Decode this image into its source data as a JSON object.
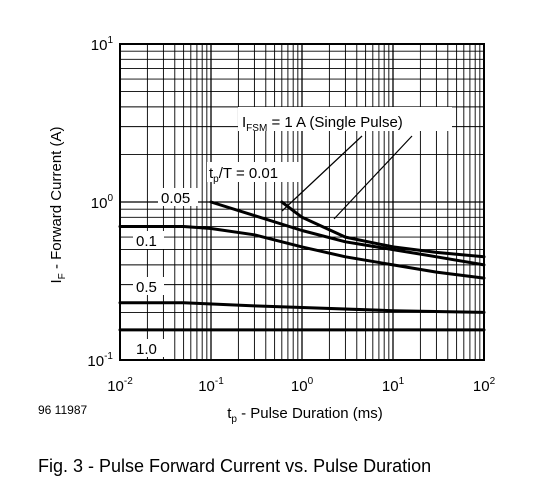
{
  "chart_data": {
    "type": "line",
    "x_scale": "log",
    "y_scale": "log",
    "xlim": [
      0.01,
      100
    ],
    "ylim": [
      0.1,
      10
    ],
    "grid": true,
    "xlabel": {
      "main": "t",
      "sub": "p",
      "rest": " - Pulse Duration (ms)"
    },
    "ylabel": {
      "main": "I",
      "sub": "F",
      "rest": " - Forward Current (A)"
    },
    "x_ticks": [
      {
        "base": "10",
        "exp": "-2",
        "value": 0.01
      },
      {
        "base": "10",
        "exp": "-1",
        "value": 0.1
      },
      {
        "base": "10",
        "exp": "0",
        "value": 1
      },
      {
        "base": "10",
        "exp": "1",
        "value": 10
      },
      {
        "base": "10",
        "exp": "2",
        "value": 100
      }
    ],
    "y_ticks": [
      {
        "base": "10",
        "exp": "1",
        "value": 10
      },
      {
        "base": "10",
        "exp": "0",
        "value": 1
      },
      {
        "base": "10",
        "exp": "-1",
        "value": 0.1
      }
    ],
    "annotation": {
      "pre": "I",
      "sub": "FSM",
      "post": " = 1 A (Single Pulse)"
    },
    "tp_T_label": {
      "pre": "t",
      "sub": "p",
      "post": "/T = 0.01"
    },
    "series": [
      {
        "label": "0.01",
        "x": [
          0.6,
          1,
          3,
          10,
          30,
          100
        ],
        "y": [
          1.0,
          0.8,
          0.6,
          0.52,
          0.48,
          0.45
        ]
      },
      {
        "label": "0.05",
        "x": [
          0.1,
          0.3,
          1,
          3,
          10,
          30,
          100
        ],
        "y": [
          1.0,
          0.82,
          0.66,
          0.56,
          0.5,
          0.45,
          0.4
        ]
      },
      {
        "label": "0.1",
        "x": [
          0.01,
          0.05,
          0.1,
          0.3,
          1,
          3,
          10,
          30,
          100
        ],
        "y": [
          0.7,
          0.7,
          0.68,
          0.62,
          0.52,
          0.45,
          0.4,
          0.36,
          0.33
        ]
      },
      {
        "label": "0.5",
        "x": [
          0.01,
          0.05,
          0.3,
          1,
          10,
          100
        ],
        "y": [
          0.23,
          0.23,
          0.22,
          0.215,
          0.205,
          0.2
        ]
      },
      {
        "label": "1.0",
        "x": [
          0.01,
          100
        ],
        "y": [
          0.155,
          0.155
        ]
      }
    ]
  },
  "doc_number": "96 11987",
  "caption": "Fig. 3 - Pulse Forward Current vs. Pulse Duration"
}
